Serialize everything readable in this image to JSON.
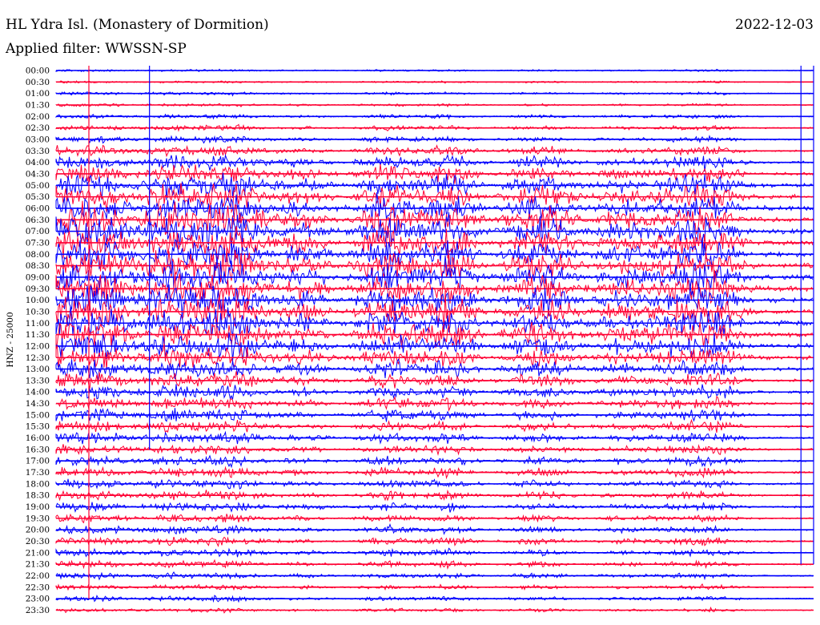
{
  "header": {
    "station": "HL Ydra Isl. (Monastery of Dormition)",
    "date": "2022-12-03",
    "filter": "Applied filter: WWSSN-SP",
    "channel_label": "HNZ - 25000"
  },
  "colors": {
    "even_rows": "#0000ff",
    "odd_rows": "#ff0033"
  },
  "chart_data": {
    "type": "line",
    "title": "HL Ydra Isl. (Monastery of Dormition)",
    "ylabel": "HNZ - 25000",
    "xlabel": "",
    "row_labels": [
      "00:00",
      "00:30",
      "01:00",
      "01:30",
      "02:00",
      "02:30",
      "03:00",
      "03:30",
      "04:00",
      "04:30",
      "05:00",
      "05:30",
      "06:00",
      "06:30",
      "07:00",
      "07:30",
      "08:00",
      "08:30",
      "09:00",
      "09:30",
      "10:00",
      "10:30",
      "11:00",
      "11:30",
      "12:00",
      "12:30",
      "13:00",
      "13:30",
      "14:00",
      "14:30",
      "15:00",
      "15:30",
      "16:00",
      "16:30",
      "17:00",
      "17:30",
      "18:00",
      "18:30",
      "19:00",
      "19:30",
      "20:00",
      "20:30",
      "21:00",
      "21:30",
      "22:00",
      "22:30",
      "23:00",
      "23:30"
    ],
    "row_minutes": 30,
    "row_colors_alternate": [
      "blue",
      "red"
    ],
    "activity_envelope": [
      0.05,
      0.05,
      0.08,
      0.08,
      0.12,
      0.15,
      0.2,
      0.3,
      0.45,
      0.55,
      0.7,
      0.8,
      0.9,
      1.0,
      1.0,
      1.0,
      1.0,
      1.0,
      1.0,
      1.0,
      1.0,
      1.0,
      0.95,
      0.9,
      0.85,
      0.7,
      0.6,
      0.5,
      0.45,
      0.4,
      0.4,
      0.35,
      0.35,
      0.3,
      0.3,
      0.3,
      0.28,
      0.28,
      0.28,
      0.25,
      0.25,
      0.25,
      0.22,
      0.2,
      0.18,
      0.15,
      0.15,
      0.12
    ],
    "event_positions_minutes": [
      2.0,
      4.5,
      6.1,
      7.0,
      13.3,
      15.5,
      19.6,
      25.7,
      30.0,
      31.7,
      34.5,
      37.2,
      39.7,
      43.0,
      45.5,
      48.8,
      52.5,
      54.4,
      56.1,
      60.2
    ]
  }
}
